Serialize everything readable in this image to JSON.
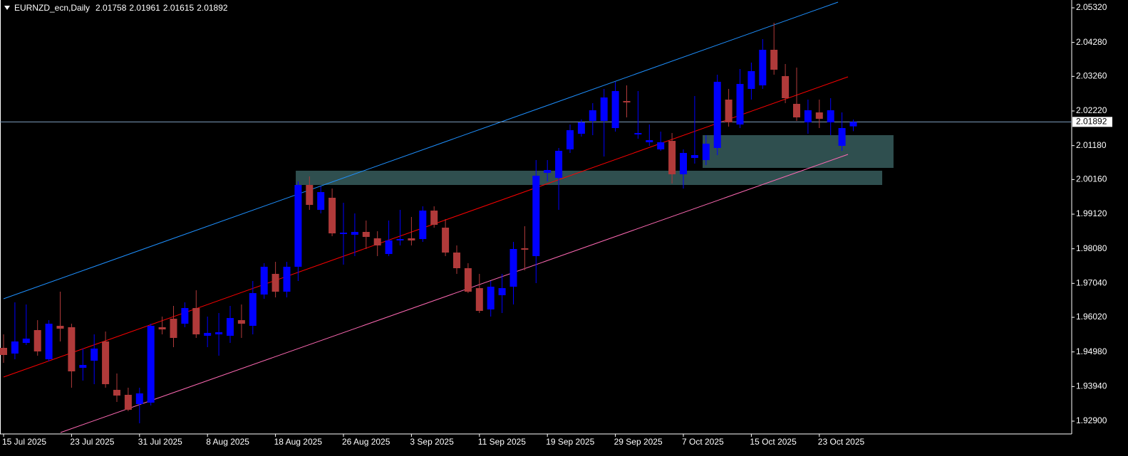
{
  "chart_data": {
    "type": "candlestick",
    "symbol": "EURNZD_ecn,Daily",
    "categories": [
      "15 Jul 2025",
      null,
      null,
      null,
      null,
      null,
      "23 Jul 2025",
      null,
      null,
      null,
      null,
      null,
      "31 Jul 2025",
      null,
      null,
      null,
      null,
      null,
      "8 Aug 2025",
      null,
      null,
      null,
      null,
      null,
      "18 Aug 2025",
      null,
      null,
      null,
      null,
      null,
      "26 Aug 2025",
      null,
      null,
      null,
      null,
      null,
      "3 Sep 2025",
      null,
      null,
      null,
      null,
      null,
      "11 Sep 2025",
      null,
      null,
      null,
      null,
      null,
      "19 Sep 2025",
      null,
      null,
      null,
      null,
      null,
      "29 Sep 2025",
      null,
      null,
      null,
      null,
      null,
      "7 Oct 2025",
      null,
      null,
      null,
      null,
      null,
      "15 Oct 2025",
      null,
      null,
      null,
      null,
      null,
      "23 Oct 2025",
      null,
      null,
      null
    ],
    "open": [
      1.95102,
      1.94931,
      1.95251,
      1.95636,
      1.9476,
      1.95764,
      1.95722,
      1.94503,
      1.94717,
      1.95294,
      1.9384,
      1.93691,
      1.93413,
      1.93456,
      1.95722,
      1.95978,
      1.95828,
      1.96299,
      1.95465,
      1.95508,
      1.95465,
      1.95935,
      1.95764,
      1.96705,
      1.97325,
      1.9679,
      1.97539,
      1.99997,
      1.99249,
      1.99612,
      1.98522,
      1.98501,
      1.98586,
      1.98394,
      1.97923,
      1.9833,
      1.98394,
      1.98372,
      1.99227,
      1.98714,
      1.97966,
      1.97496,
      1.96897,
      1.96256,
      1.96684,
      1.9694,
      1.98094,
      1.97859,
      2.0036,
      2.00211,
      2.01066,
      2.01536,
      2.01921,
      2.01921,
      2.01707,
      2.02519,
      2.01515,
      2.0128,
      2.01066,
      2.01322,
      2.00318,
      2.00809,
      2.00745,
      2.01109,
      2.02562,
      2.01814,
      2.02883,
      2.0299,
      2.04059,
      2.03268,
      2.02434,
      2.01878,
      2.02177,
      2.01878,
      2.01173,
      2.01758
    ],
    "high": [
      1.95508,
      1.9647,
      1.96406,
      1.95935,
      1.95935,
      1.9679,
      1.95828,
      1.9508,
      1.95508,
      1.95593,
      1.94332,
      1.93905,
      1.93905,
      1.95828,
      1.96042,
      1.96363,
      1.9647,
      1.96833,
      1.96042,
      1.96149,
      1.96363,
      1.96406,
      1.97111,
      1.97646,
      1.97688,
      1.97688,
      2.00104,
      2.00254,
      1.99954,
      1.9989,
      1.99463,
      1.99142,
      1.98928,
      1.98607,
      1.98928,
      1.99249,
      1.99035,
      1.99356,
      1.99356,
      1.98971,
      1.9818,
      1.97646,
      1.97325,
      1.97111,
      1.97325,
      1.98287,
      1.98757,
      2.00745,
      2.00745,
      2.01109,
      2.01814,
      2.01964,
      2.02455,
      2.02883,
      2.03097,
      2.0299,
      2.02819,
      2.01814,
      2.016,
      2.01558,
      2.01066,
      2.02669,
      2.01493,
      2.0331,
      2.02883,
      2.03481,
      2.03674,
      2.04379,
      2.04871,
      2.03631,
      2.03524,
      2.02562,
      2.02562,
      2.02605,
      2.02177,
      2.01961
    ],
    "low": [
      1.94653,
      1.9476,
      1.95187,
      1.94866,
      1.94695,
      1.95294,
      1.93905,
      1.94118,
      1.94011,
      1.93905,
      1.93477,
      1.93199,
      1.92836,
      1.9337,
      1.95508,
      1.95123,
      1.95722,
      1.95401,
      1.95123,
      1.94866,
      1.95251,
      1.95401,
      1.95508,
      1.96577,
      1.96619,
      1.96619,
      1.97111,
      1.99249,
      1.99142,
      1.98458,
      1.97603,
      1.97859,
      1.98073,
      1.97859,
      1.97859,
      1.9818,
      1.9818,
      1.98287,
      1.98714,
      1.97859,
      1.97325,
      1.96748,
      1.96149,
      1.96042,
      1.96149,
      1.96406,
      1.97432,
      1.97047,
      2.00104,
      1.99249,
      2.00959,
      2.01451,
      2.01493,
      2.00852,
      2.016,
      2.02028,
      2.01386,
      2.01173,
      2.01023,
      2.0004,
      1.9989,
      2.00638,
      2.00596,
      2.00895,
      2.0175,
      2.01707,
      2.02562,
      2.02883,
      2.0331,
      2.02455,
      2.01921,
      2.01536,
      2.01707,
      2.01493,
      2.01023,
      2.01615
    ],
    "close": [
      1.94888,
      1.95294,
      1.9538,
      1.94995,
      1.95828,
      1.95679,
      1.94396,
      1.94589,
      1.9508,
      1.94011,
      1.93669,
      1.93242,
      1.93734,
      1.95764,
      1.95657,
      1.95401,
      1.96299,
      1.95508,
      1.95551,
      1.95572,
      1.95999,
      1.95828,
      1.96748,
      1.97539,
      1.9679,
      1.97539,
      1.99997,
      1.99398,
      1.99783,
      1.98543,
      1.98565,
      1.98586,
      1.98436,
      1.9818,
      1.9833,
      1.98372,
      1.9833,
      1.99227,
      1.988,
      1.97966,
      1.97496,
      1.9679,
      1.96213,
      1.9694,
      1.96897,
      1.98073,
      1.98052,
      2.00275,
      2.00446,
      2.01023,
      2.01643,
      2.01878,
      2.02242,
      2.02626,
      2.02819,
      2.02477,
      2.01558,
      2.01344,
      2.0128,
      2.00318,
      2.00959,
      2.00895,
      2.01237,
      2.03097,
      2.01878,
      2.03033,
      2.03417,
      2.04059,
      2.0346,
      2.02605,
      2.02028,
      2.02242,
      2.01985,
      2.02242,
      2.01707,
      2.01892
    ],
    "up_color": "#0000ff",
    "down_color": "#b03a3a",
    "price_line_color": "#7f9fbf",
    "ylim": [
      1.92558,
      2.05555
    ],
    "yticks": [
      {
        "value": 2.0532,
        "label": "2.05320"
      },
      {
        "value": 2.0428,
        "label": "2.04280"
      },
      {
        "value": 2.0326,
        "label": "2.03260"
      },
      {
        "value": 2.0222,
        "label": "2.02220"
      },
      {
        "value": 2.0118,
        "label": "2.01180"
      },
      {
        "value": 2.0016,
        "label": "2.00160"
      },
      {
        "value": 1.9912,
        "label": "1.99120"
      },
      {
        "value": 1.9808,
        "label": "1.98080"
      },
      {
        "value": 1.9704,
        "label": "1.97040"
      },
      {
        "value": 1.9602,
        "label": "1.96020"
      },
      {
        "value": 1.9498,
        "label": "1.94980"
      },
      {
        "value": 1.9394,
        "label": "1.93940"
      },
      {
        "value": 1.929,
        "label": "1.92900"
      }
    ],
    "trendlines": [
      {
        "color": "#1e90ff",
        "x": [
          0,
          73.65
        ],
        "values": [
          1.96577,
          2.05491
        ]
      },
      {
        "color": "#ff0000",
        "x": [
          0,
          74.53
        ],
        "values": [
          1.94225,
          2.03246
        ]
      },
      {
        "color": "#ff69b4",
        "x": [
          5.03,
          74.53
        ],
        "values": [
          1.92558,
          2.00916
        ]
      }
    ],
    "zones": [
      {
        "color": "#2f4f4f",
        "x": [
          25.79,
          77.55
        ],
        "values": [
          1.99997,
          2.00425
        ]
      },
      {
        "color": "#2f4f4f",
        "x": [
          61.7,
          78.55
        ],
        "values": [
          2.0051,
          2.01494
        ]
      }
    ]
  }
}
